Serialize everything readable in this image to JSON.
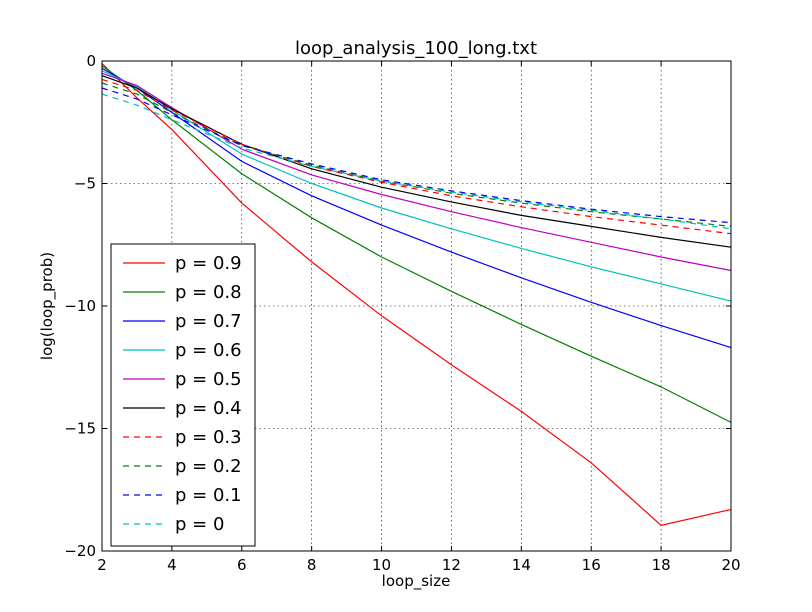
{
  "chart_data": {
    "type": "line",
    "title": "loop_analysis_100_long.txt",
    "xlabel": "loop_size",
    "ylabel": "log(loop_prob)",
    "xlim": [
      2,
      20
    ],
    "ylim": [
      -20,
      0
    ],
    "x_ticks": [
      2,
      4,
      6,
      8,
      10,
      12,
      14,
      16,
      18,
      20
    ],
    "y_ticks": [
      0,
      -5,
      -10,
      -15,
      -20
    ],
    "x_tick_labels": [
      "2",
      "4",
      "6",
      "8",
      "10",
      "12",
      "14",
      "16",
      "18",
      "20"
    ],
    "y_tick_labels": [
      "0",
      "−5",
      "−10",
      "−15",
      "−20"
    ],
    "grid": true,
    "legend_position": "lower-left",
    "x": [
      2,
      3,
      4,
      6,
      8,
      10,
      12,
      14,
      16,
      18,
      20
    ],
    "series": [
      {
        "name": "p = 0.9",
        "color": "#ff0000",
        "dash": false,
        "values": [
          -0.1,
          -1.5,
          -2.8,
          -5.8,
          -8.2,
          -10.4,
          -12.4,
          -14.3,
          -16.4,
          -18.95,
          -18.3
        ]
      },
      {
        "name": "p = 0.8",
        "color": "#008000",
        "dash": false,
        "values": [
          -0.2,
          -1.2,
          -2.4,
          -4.6,
          -6.4,
          -8.0,
          -9.4,
          -10.75,
          -12.05,
          -13.3,
          -14.75
        ]
      },
      {
        "name": "p = 0.7",
        "color": "#0000ff",
        "dash": false,
        "values": [
          -0.3,
          -1.1,
          -2.1,
          -4.1,
          -5.5,
          -6.7,
          -7.8,
          -8.85,
          -9.85,
          -10.8,
          -11.7
        ]
      },
      {
        "name": "p = 0.6",
        "color": "#00bfbf",
        "dash": false,
        "values": [
          -0.4,
          -1.05,
          -2.0,
          -3.8,
          -5.0,
          -6.0,
          -6.85,
          -7.65,
          -8.4,
          -9.1,
          -9.8
        ]
      },
      {
        "name": "p = 0.5",
        "color": "#bf00bf",
        "dash": false,
        "values": [
          -0.5,
          -1.0,
          -1.9,
          -3.6,
          -4.65,
          -5.45,
          -6.15,
          -6.8,
          -7.4,
          -8.0,
          -8.55
        ]
      },
      {
        "name": "p = 0.4",
        "color": "#000000",
        "dash": false,
        "values": [
          -0.6,
          -1.1,
          -1.95,
          -3.4,
          -4.4,
          -5.15,
          -5.75,
          -6.3,
          -6.75,
          -7.2,
          -7.6
        ]
      },
      {
        "name": "p = 0.3",
        "color": "#ff0000",
        "dash": true,
        "values": [
          -0.75,
          -1.2,
          -2.0,
          -3.4,
          -4.3,
          -4.95,
          -5.5,
          -5.95,
          -6.35,
          -6.7,
          -7.05
        ]
      },
      {
        "name": "p = 0.2",
        "color": "#008000",
        "dash": true,
        "values": [
          -0.9,
          -1.35,
          -2.1,
          -3.45,
          -4.25,
          -4.9,
          -5.4,
          -5.8,
          -6.15,
          -6.45,
          -6.75
        ]
      },
      {
        "name": "p = 0.1",
        "color": "#0000ff",
        "dash": true,
        "values": [
          -1.1,
          -1.55,
          -2.2,
          -3.45,
          -4.2,
          -4.85,
          -5.3,
          -5.7,
          -6.05,
          -6.35,
          -6.6
        ]
      },
      {
        "name": "p = 0",
        "color": "#00bfbf",
        "dash": true,
        "values": [
          -1.35,
          -1.8,
          -2.4,
          -3.55,
          -4.3,
          -4.9,
          -5.35,
          -5.75,
          -6.1,
          -6.45,
          -6.85
        ]
      }
    ]
  }
}
